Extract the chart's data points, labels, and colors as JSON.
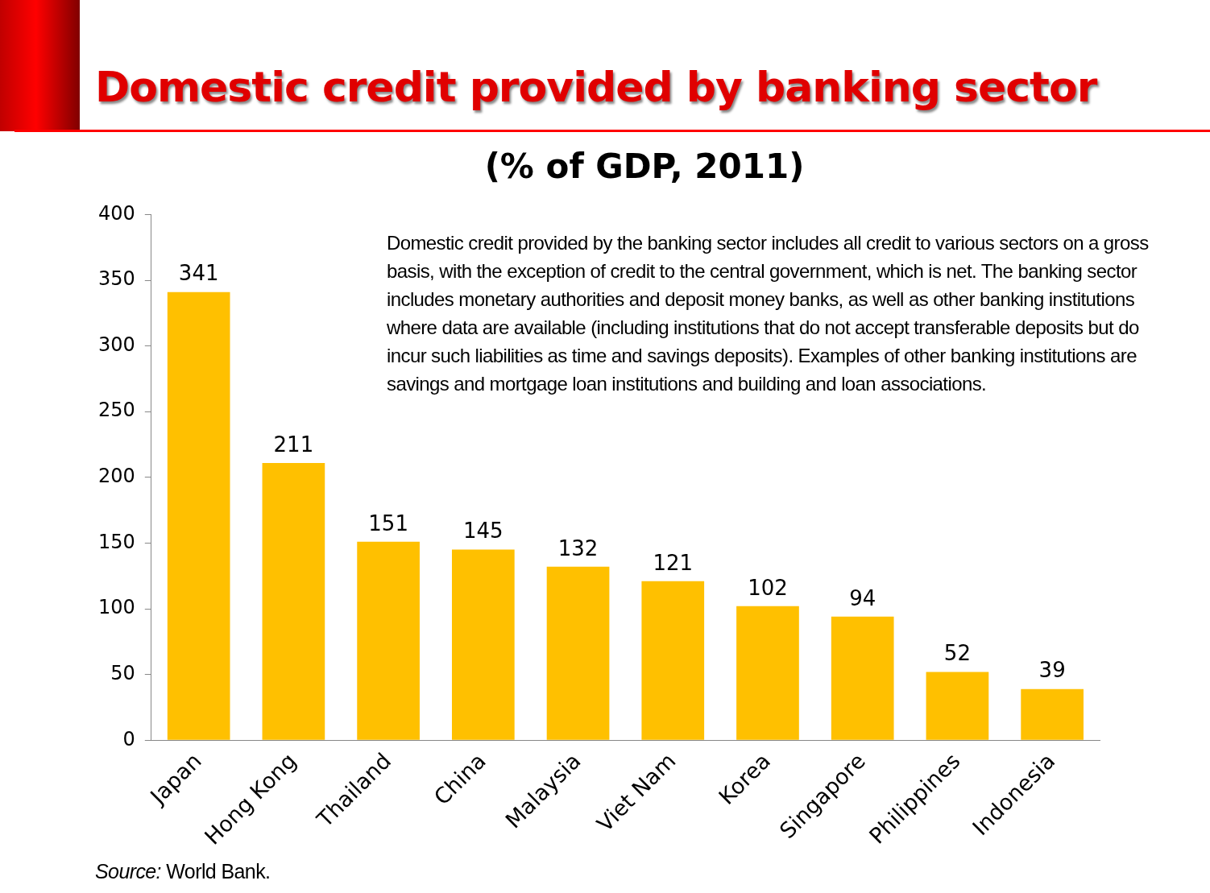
{
  "chart_data": {
    "type": "bar",
    "title": "Domestic credit provided by banking sector",
    "subtitle": "(% of GDP, 2011)",
    "categories": [
      "Japan",
      "Hong Kong",
      "Thailand",
      "China",
      "Malaysia",
      "Viet Nam",
      "Korea",
      "Singapore",
      "Philippines",
      "Indonesia"
    ],
    "values": [
      341,
      211,
      151,
      145,
      132,
      121,
      102,
      94,
      52,
      39
    ],
    "color": "#ffc000",
    "ylim": [
      0,
      400
    ],
    "yticks": [
      0,
      50,
      100,
      150,
      200,
      250,
      300,
      350,
      400
    ],
    "grid": false,
    "data_labels": true,
    "annotations": [
      "Domestic credit provided by the banking sector includes all credit to various sectors on a gross basis, with the exception of credit to the central government, which is net. The banking sector includes monetary authorities and deposit money banks, as well as other banking institutions where data are available (including institutions that do not accept transferable deposits but do incur such liabilities as time and savings deposits). Examples of other banking institutions are savings and mortgage loan institutions and building and loan associations.",
      "Source: World Bank."
    ]
  }
}
